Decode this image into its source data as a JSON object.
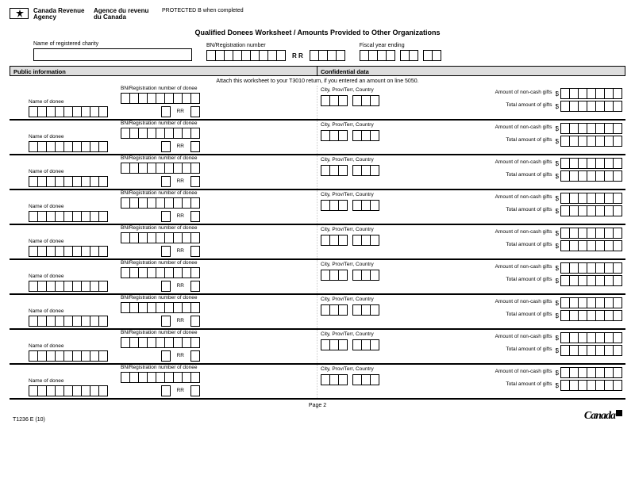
{
  "header": {
    "agency_en": "Canada Revenue Agency",
    "agency_fr": "Agence du revenu du Canada",
    "gc_protected": "PROTECTED B when completed",
    "title": "Qualified Donees Worksheet / Amounts Provided to Other Organizations",
    "name_label": "Name of registered charity",
    "bn_label": "BN/Registration number",
    "rr": "R R",
    "fy_label": "Fiscal year ending"
  },
  "strip": {
    "left": "Public information",
    "right": "Confidential data"
  },
  "inst": "Attach this worksheet to your T3010 return, if you entered an amount on line 5050.",
  "row_labels": {
    "name": "Name of donee",
    "bn": "BN/Registration number of donee",
    "rr": "RR",
    "city_prov": "City, Prov/Terr, Country",
    "amt_noncash": "Amount of non-cash gifts",
    "total": "Total amount of gifts"
  },
  "row_count": 9,
  "boxes": {
    "top_bn_segments": [
      9,
      4
    ],
    "fy_segments": [
      4,
      2,
      2
    ],
    "donee_name_cells": 9,
    "donee_bn_cells": 9,
    "donee_rr_cells": 4,
    "city_cells": 3,
    "prov_cells": 3,
    "amount_cells": 7
  },
  "p2": "Page 2",
  "footer": {
    "formno": "T1236 E (10)",
    "wordmark": "Canada"
  },
  "colors": {
    "strip_bg": "#dddddd",
    "line": "#000000",
    "bg": "#ffffff"
  }
}
